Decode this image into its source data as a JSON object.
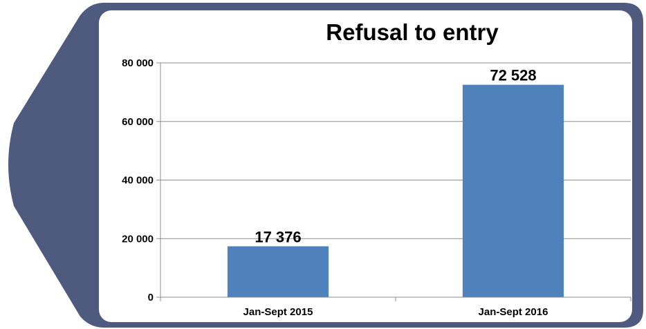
{
  "colors": {
    "frame": "#4e5b7e",
    "panel": "#ffffff",
    "bar": "#4f81bd",
    "grid": "#8c8c8c",
    "axis": "#8c8c8c"
  },
  "chart_data": {
    "type": "bar",
    "title": "Refusal to entry",
    "categories": [
      "Jan-Sept 2015",
      "Jan-Sept 2016"
    ],
    "values": [
      17376,
      72528
    ],
    "data_labels": [
      "17 376",
      "72 528"
    ],
    "ylim": [
      0,
      80000
    ],
    "yticks": [
      0,
      20000,
      40000,
      60000,
      80000
    ],
    "ytick_labels": [
      "0",
      "20 000",
      "40 000",
      "60 000",
      "80 000"
    ],
    "grid": true,
    "legend": "none"
  }
}
